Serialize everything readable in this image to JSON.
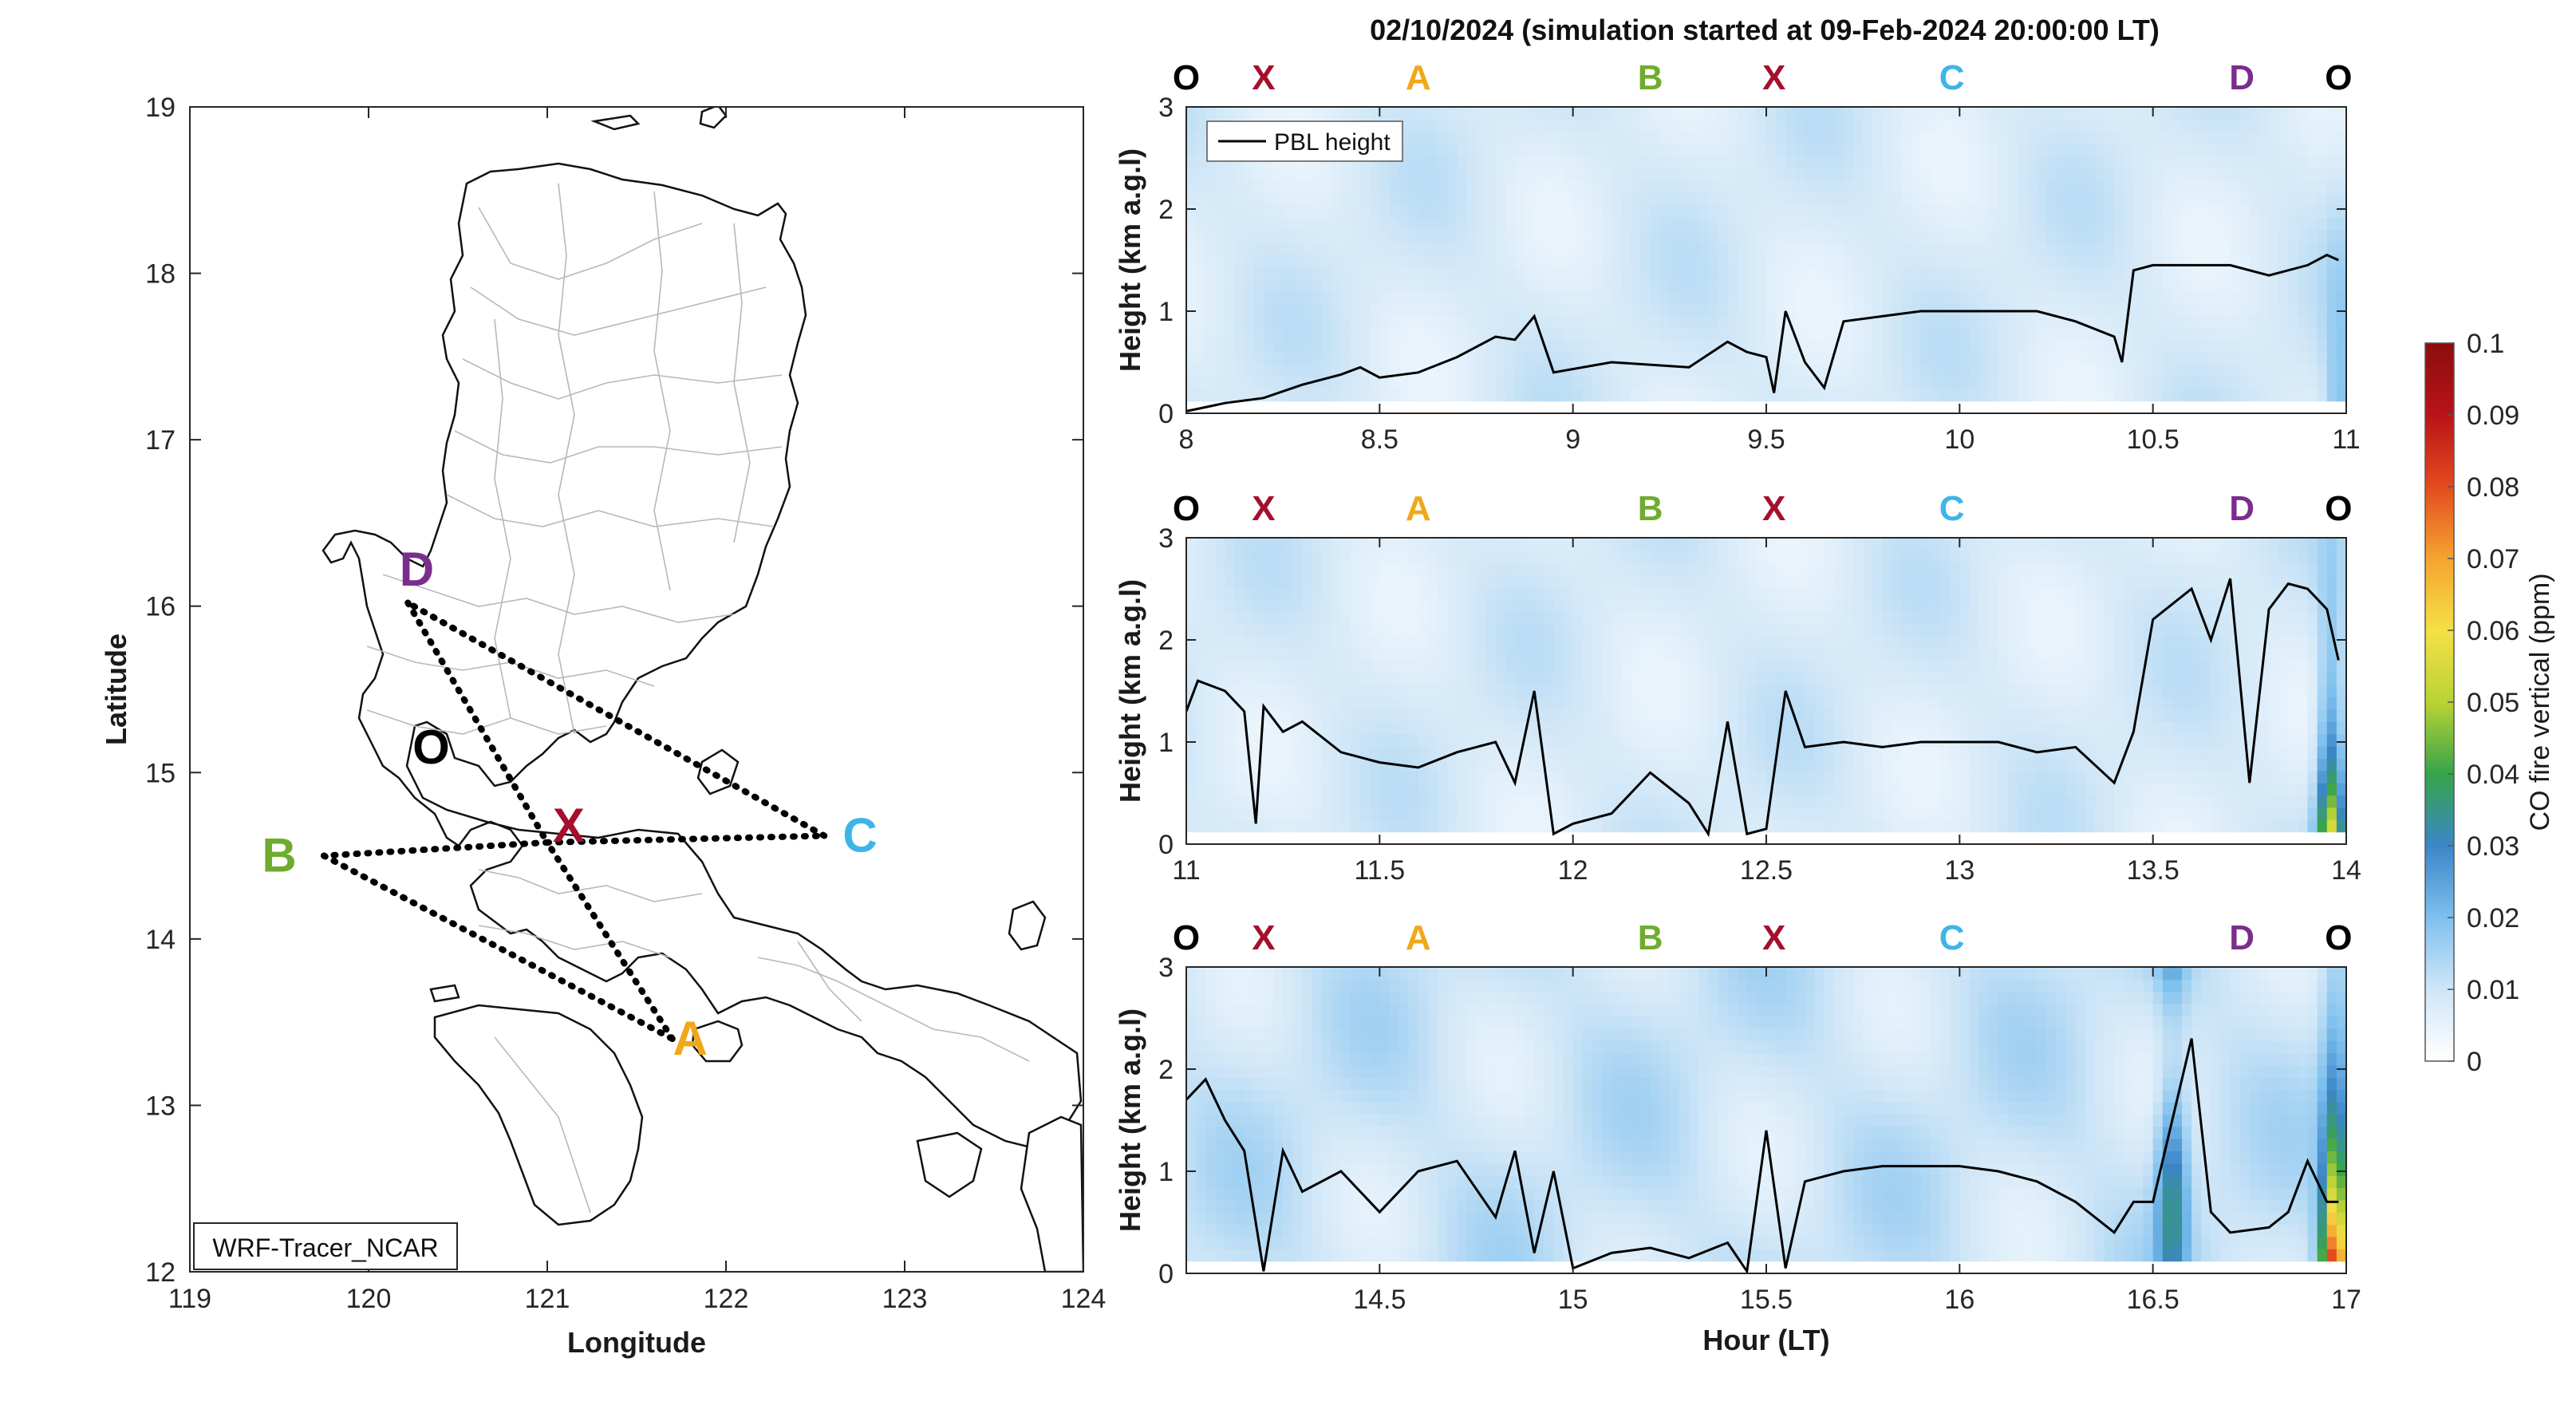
{
  "title": "02/10/2024 (simulation started at 09-Feb-2024 20:00:00 LT)",
  "colors": {
    "O": "#000000",
    "X": "#a50f2d",
    "A": "#f0a81a",
    "B": "#6fac2e",
    "C": "#3fb4e8",
    "D": "#7b2d8e",
    "route": "#000000",
    "pbl": "#000000"
  },
  "map": {
    "xlabel": "Longitude",
    "ylabel": "Latitude",
    "xlim": [
      119,
      124
    ],
    "ylim": [
      12,
      19
    ],
    "xticks": [
      119,
      120,
      121,
      122,
      123,
      124
    ],
    "yticks": [
      12,
      13,
      14,
      15,
      16,
      17,
      18,
      19
    ],
    "label_box": "WRF-Tracer_NCAR",
    "points": [
      {
        "id": "O",
        "lon": 120.35,
        "lat": 15.15
      },
      {
        "id": "X",
        "lon": 121.0,
        "lat": 14.58
      },
      {
        "id": "A",
        "lon": 121.7,
        "lat": 13.4
      },
      {
        "id": "B",
        "lon": 119.75,
        "lat": 14.5
      },
      {
        "id": "C",
        "lon": 122.55,
        "lat": 14.62
      },
      {
        "id": "D",
        "lon": 120.22,
        "lat": 16.02
      }
    ],
    "route": [
      "D",
      "X",
      "B",
      "A",
      "X",
      "C",
      "D"
    ],
    "label_offsets": {
      "O": [
        0,
        0
      ],
      "X": [
        0.12,
        0.1
      ],
      "A": [
        0.1,
        -0.0
      ],
      "B": [
        -0.25,
        0
      ],
      "C": [
        0.2,
        0
      ],
      "D": [
        0.05,
        0.2
      ]
    }
  },
  "chart_data": [
    {
      "type": "heatmap",
      "title": "02/10/2024 (simulation started at 09-Feb-2024 20:00:00 LT)",
      "xlabel": "",
      "ylabel": "Height (km a.g.l)",
      "xlim": [
        8,
        11
      ],
      "ylim": [
        0,
        3
      ],
      "xticks": [
        8,
        8.5,
        9,
        9.5,
        10,
        10.5,
        11
      ],
      "yticks": [
        0,
        1,
        2,
        3
      ],
      "legend": {
        "entries": [
          "PBL height"
        ],
        "location": "top-left"
      },
      "waypoints": [
        {
          "id": "O",
          "hour": 8.0
        },
        {
          "id": "X",
          "hour": 8.2
        },
        {
          "id": "A",
          "hour": 8.6
        },
        {
          "id": "B",
          "hour": 9.2
        },
        {
          "id": "X",
          "hour": 9.52
        },
        {
          "id": "C",
          "hour": 9.98
        },
        {
          "id": "D",
          "hour": 10.73
        },
        {
          "id": "O",
          "hour": 10.98
        }
      ],
      "pbl_height": {
        "name": "PBL height",
        "x": [
          8.0,
          8.1,
          8.2,
          8.3,
          8.4,
          8.45,
          8.5,
          8.6,
          8.7,
          8.8,
          8.85,
          8.9,
          8.95,
          9.1,
          9.3,
          9.4,
          9.45,
          9.5,
          9.52,
          9.55,
          9.6,
          9.65,
          9.7,
          9.8,
          9.9,
          10.0,
          10.2,
          10.3,
          10.4,
          10.42,
          10.45,
          10.5,
          10.6,
          10.7,
          10.8,
          10.9,
          10.95,
          10.98
        ],
        "y": [
          0.02,
          0.1,
          0.15,
          0.28,
          0.38,
          0.45,
          0.35,
          0.4,
          0.55,
          0.75,
          0.72,
          0.95,
          0.4,
          0.5,
          0.45,
          0.7,
          0.6,
          0.55,
          0.2,
          1.0,
          0.5,
          0.25,
          0.9,
          0.95,
          1.0,
          1.0,
          1.0,
          0.9,
          0.75,
          0.5,
          1.4,
          1.45,
          1.45,
          1.45,
          1.35,
          1.45,
          1.55,
          1.5
        ]
      },
      "co_fire": {
        "peak_hour": 10.98,
        "peak_ppm": 0.025,
        "background_ppm": 0.012
      }
    },
    {
      "type": "heatmap",
      "xlabel": "",
      "ylabel": "Height (km a.g.l)",
      "xlim": [
        11,
        14
      ],
      "ylim": [
        0,
        3
      ],
      "xticks": [
        11,
        11.5,
        12,
        12.5,
        13,
        13.5,
        14
      ],
      "yticks": [
        0,
        1,
        2,
        3
      ],
      "waypoints": [
        {
          "id": "O",
          "hour": 11.0
        },
        {
          "id": "X",
          "hour": 11.2
        },
        {
          "id": "A",
          "hour": 11.6
        },
        {
          "id": "B",
          "hour": 12.2
        },
        {
          "id": "X",
          "hour": 12.52
        },
        {
          "id": "C",
          "hour": 12.98
        },
        {
          "id": "D",
          "hour": 13.73
        },
        {
          "id": "O",
          "hour": 13.98
        }
      ],
      "pbl_height": {
        "name": "PBL height",
        "x": [
          11.0,
          11.03,
          11.1,
          11.15,
          11.18,
          11.2,
          11.25,
          11.3,
          11.4,
          11.5,
          11.6,
          11.7,
          11.8,
          11.85,
          11.9,
          11.95,
          12.0,
          12.1,
          12.2,
          12.3,
          12.35,
          12.4,
          12.45,
          12.5,
          12.55,
          12.6,
          12.7,
          12.8,
          12.9,
          13.0,
          13.1,
          13.2,
          13.3,
          13.4,
          13.45,
          13.5,
          13.6,
          13.65,
          13.7,
          13.75,
          13.8,
          13.85,
          13.9,
          13.95,
          13.98
        ],
        "y": [
          1.3,
          1.6,
          1.5,
          1.3,
          0.2,
          1.35,
          1.1,
          1.2,
          0.9,
          0.8,
          0.75,
          0.9,
          1.0,
          0.6,
          1.5,
          0.1,
          0.2,
          0.3,
          0.7,
          0.4,
          0.1,
          1.2,
          0.1,
          0.15,
          1.5,
          0.95,
          1.0,
          0.95,
          1.0,
          1.0,
          1.0,
          0.9,
          0.95,
          0.6,
          1.1,
          2.2,
          2.5,
          2.0,
          2.6,
          0.6,
          2.3,
          2.55,
          2.5,
          2.3,
          1.8
        ]
      },
      "co_fire": {
        "peak_hour": 13.96,
        "peak_ppm": 0.065,
        "background_ppm": 0.012
      }
    },
    {
      "type": "heatmap",
      "xlabel": "Hour (LT)",
      "ylabel": "Height (km a.g.l)",
      "xlim": [
        14,
        17
      ],
      "ylim": [
        0,
        3
      ],
      "xticks": [
        14.5,
        15,
        15.5,
        16,
        16.5,
        17
      ],
      "yticks": [
        0,
        1,
        2,
        3
      ],
      "waypoints": [
        {
          "id": "O",
          "hour": 14.0
        },
        {
          "id": "X",
          "hour": 14.2
        },
        {
          "id": "A",
          "hour": 14.6
        },
        {
          "id": "B",
          "hour": 15.2
        },
        {
          "id": "X",
          "hour": 15.52
        },
        {
          "id": "C",
          "hour": 15.98
        },
        {
          "id": "D",
          "hour": 16.73
        },
        {
          "id": "O",
          "hour": 16.98
        }
      ],
      "pbl_height": {
        "name": "PBL height",
        "x": [
          14.0,
          14.05,
          14.1,
          14.15,
          14.2,
          14.25,
          14.3,
          14.4,
          14.5,
          14.6,
          14.7,
          14.8,
          14.85,
          14.9,
          14.95,
          15.0,
          15.1,
          15.2,
          15.3,
          15.4,
          15.45,
          15.5,
          15.55,
          15.6,
          15.7,
          15.8,
          15.9,
          16.0,
          16.1,
          16.2,
          16.3,
          16.4,
          16.45,
          16.5,
          16.55,
          16.6,
          16.65,
          16.7,
          16.8,
          16.85,
          16.9,
          16.95,
          16.98
        ],
        "y": [
          1.7,
          1.9,
          1.5,
          1.2,
          0.02,
          1.2,
          0.8,
          1.0,
          0.6,
          1.0,
          1.1,
          0.55,
          1.2,
          0.2,
          1.0,
          0.05,
          0.2,
          0.25,
          0.15,
          0.3,
          0.02,
          1.4,
          0.05,
          0.9,
          1.0,
          1.05,
          1.05,
          1.05,
          1.0,
          0.9,
          0.7,
          0.4,
          0.7,
          0.7,
          1.5,
          2.3,
          0.6,
          0.4,
          0.45,
          0.6,
          1.1,
          0.7,
          0.7
        ]
      },
      "co_fire": {
        "peak_hour": 16.97,
        "peak_ppm": 0.1,
        "background_ppm": 0.015
      }
    }
  ],
  "colorbar": {
    "label": "CO fire vertical (ppm)",
    "min": 0,
    "max": 0.1,
    "ticks": [
      "0",
      "0.01",
      "0.02",
      "0.03",
      "0.04",
      "0.05",
      "0.06",
      "0.07",
      "0.08",
      "0.09",
      "0.1"
    ],
    "stops": [
      "#ffffff",
      "#cfe6f7",
      "#7ec0ee",
      "#3b86c8",
      "#37a44a",
      "#b9d334",
      "#f5e047",
      "#f5a430",
      "#e34b1f",
      "#b91319",
      "#8b0d0d"
    ]
  }
}
